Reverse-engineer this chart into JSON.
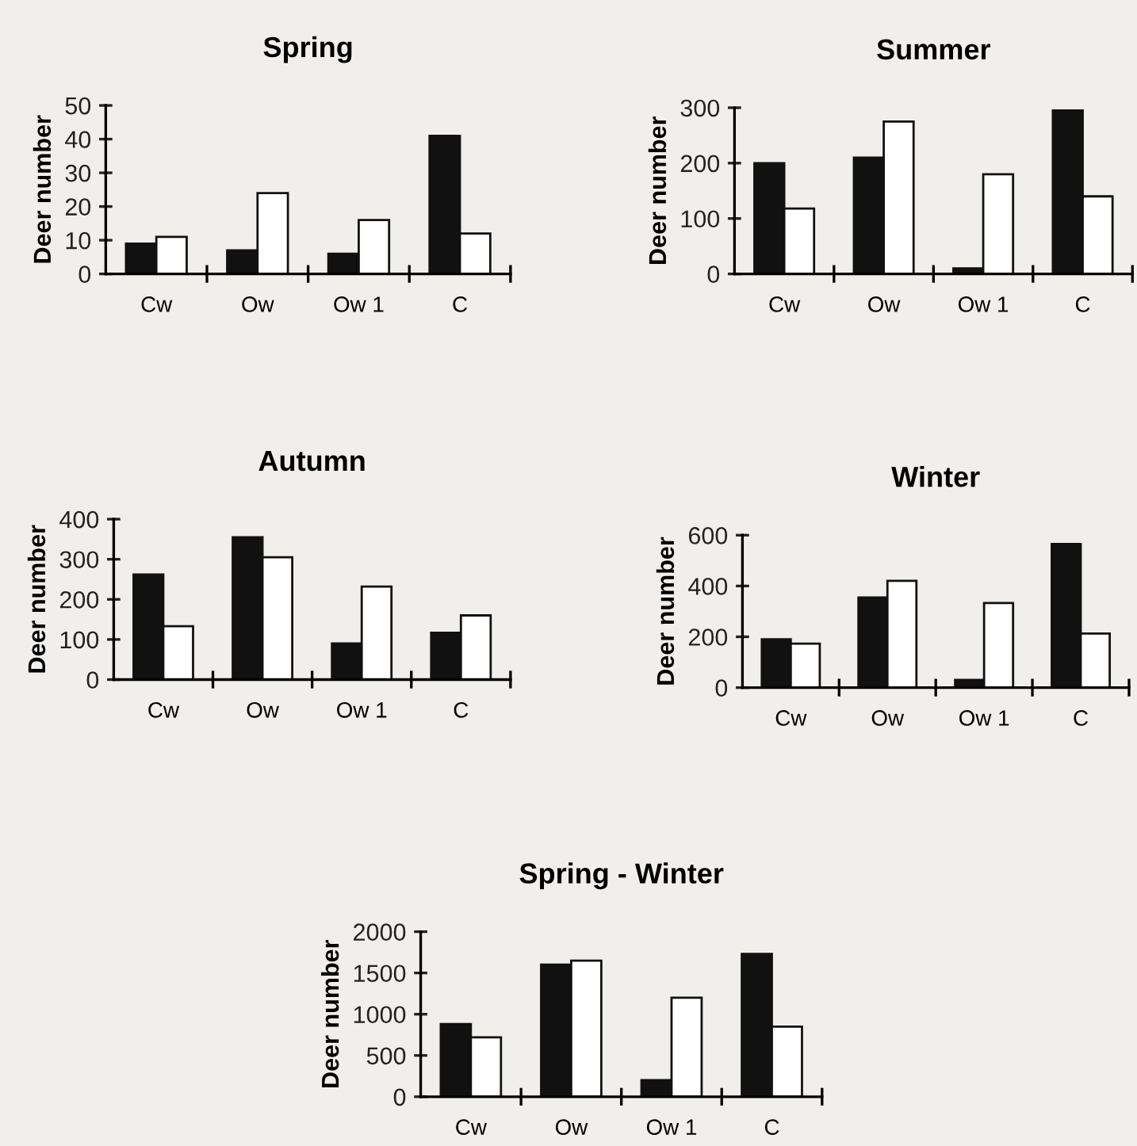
{
  "chart_data": [
    {
      "type": "bar",
      "title": "Spring",
      "ylabel": "Deer number",
      "categories": [
        "Cw",
        "Ow",
        "Ow 1",
        "C"
      ],
      "ylim": [
        0,
        50
      ],
      "yticks": [
        0,
        10,
        20,
        30,
        40,
        50
      ],
      "grid": false,
      "series": [
        {
          "color": "#111111",
          "values": [
            9,
            7,
            6,
            41
          ]
        },
        {
          "color": "#ffffff",
          "values": [
            11,
            24,
            16,
            12
          ]
        }
      ]
    },
    {
      "type": "bar",
      "title": "Summer",
      "ylabel": "Deer number",
      "categories": [
        "Cw",
        "Ow",
        "Ow 1",
        "C"
      ],
      "ylim": [
        0,
        300
      ],
      "yticks": [
        0,
        100,
        200,
        300
      ],
      "grid": false,
      "series": [
        {
          "color": "#111111",
          "values": [
            200,
            210,
            10,
            295
          ]
        },
        {
          "color": "#ffffff",
          "values": [
            118,
            275,
            180,
            140
          ]
        }
      ]
    },
    {
      "type": "bar",
      "title": "Autumn",
      "ylabel": "Deer number",
      "categories": [
        "Cw",
        "Ow",
        "Ow 1",
        "C"
      ],
      "ylim": [
        0,
        400
      ],
      "yticks": [
        0,
        100,
        200,
        300,
        400
      ],
      "grid": false,
      "series": [
        {
          "color": "#111111",
          "values": [
            262,
            355,
            90,
            117
          ]
        },
        {
          "color": "#ffffff",
          "values": [
            133,
            305,
            232,
            160
          ]
        }
      ]
    },
    {
      "type": "bar",
      "title": "Winter",
      "ylabel": "Deer number",
      "categories": [
        "Cw",
        "Ow",
        "Ow 1",
        "C"
      ],
      "ylim": [
        0,
        600
      ],
      "yticks": [
        0,
        200,
        400,
        600
      ],
      "grid": false,
      "series": [
        {
          "color": "#111111",
          "values": [
            190,
            355,
            30,
            565
          ]
        },
        {
          "color": "#ffffff",
          "values": [
            173,
            420,
            333,
            213
          ]
        }
      ]
    },
    {
      "type": "bar",
      "title": "Spring - Winter",
      "ylabel": "Deer number",
      "categories": [
        "Cw",
        "Ow",
        "Ow 1",
        "C"
      ],
      "ylim": [
        0,
        2000
      ],
      "yticks": [
        0,
        500,
        1000,
        1500,
        2000
      ],
      "grid": false,
      "series": [
        {
          "color": "#111111",
          "values": [
            880,
            1600,
            200,
            1730
          ]
        },
        {
          "color": "#ffffff",
          "values": [
            720,
            1650,
            1200,
            850
          ]
        }
      ]
    }
  ]
}
